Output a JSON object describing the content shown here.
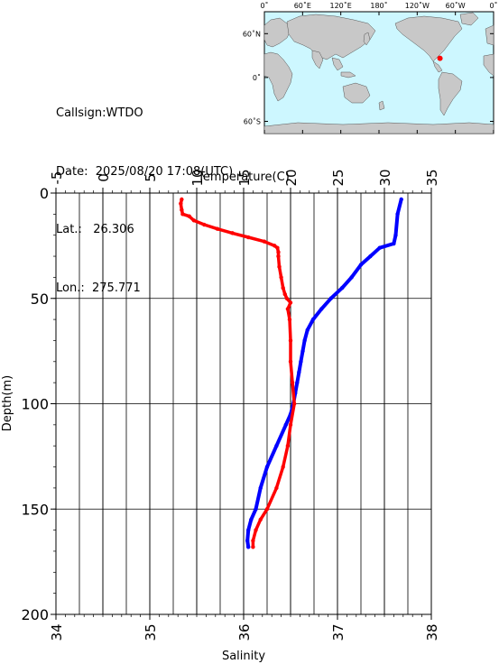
{
  "station": {
    "callsign_label": "Callsign:",
    "callsign": "WTDO",
    "date_label": "Date:",
    "date": "2025/08/20 17:08(UTC)",
    "lat_label": "Lat.:",
    "lat": "26.306",
    "lon_label": "Lon.:",
    "lon": "275.771"
  },
  "map": {
    "lon_ticks": [
      "0˚",
      "60˚E",
      "120˚E",
      "180˚",
      "120˚W",
      "60˚W",
      "0˚"
    ],
    "lat_ticks": [
      "60˚N",
      "0˚",
      "60˚S"
    ],
    "colors": {
      "ocean": "#cdf7ff",
      "land": "#c8c8c8",
      "marker": "#ff0000"
    },
    "marker": {
      "lat": 26.306,
      "lon": 275.771
    }
  },
  "chart_data": {
    "type": "line",
    "title": "",
    "top_axis_label": "Temperature(C)",
    "bottom_axis_label": "Salinity",
    "ylabel": "Depth(m)",
    "temperature_range": [
      -5,
      35
    ],
    "salinity_range": [
      34,
      38
    ],
    "depth_range": [
      0,
      200
    ],
    "temperature_ticks": [
      -5,
      0,
      5,
      10,
      15,
      20,
      25,
      30,
      35
    ],
    "salinity_ticks": [
      34,
      35,
      36,
      37,
      38
    ],
    "depth_ticks": [
      0,
      50,
      100,
      150,
      200
    ],
    "grid": true,
    "series": [
      {
        "color": "#0000ff",
        "axis": "temperature",
        "depth": [
          3,
          10,
          20,
          24,
          26,
          30,
          34,
          40,
          45,
          50,
          55,
          60,
          65,
          70,
          75,
          80,
          85,
          90,
          95,
          100,
          105,
          110,
          120,
          130,
          140,
          150,
          155,
          160,
          165,
          168
        ],
        "values": [
          31.8,
          31.4,
          31.2,
          31.0,
          29.5,
          28.5,
          27.5,
          26.5,
          25.5,
          24.3,
          23.3,
          22.4,
          21.8,
          21.5,
          21.3,
          21.1,
          20.9,
          20.7,
          20.5,
          20.3,
          20.0,
          19.5,
          18.5,
          17.5,
          16.8,
          16.3,
          15.8,
          15.5,
          15.4,
          15.5
        ]
      },
      {
        "color": "#ff0000",
        "axis": "salinity",
        "depth": [
          3,
          5,
          8,
          10,
          11,
          13,
          15,
          17,
          19,
          21,
          23,
          25,
          26,
          28,
          30,
          35,
          40,
          45,
          48,
          50,
          52,
          55,
          60,
          70,
          80,
          90,
          100,
          110,
          120,
          130,
          140,
          150,
          155,
          160,
          165,
          168
        ],
        "values": [
          35.34,
          35.33,
          35.34,
          35.35,
          35.42,
          35.47,
          35.58,
          35.72,
          35.88,
          36.05,
          36.22,
          36.33,
          36.36,
          36.37,
          36.37,
          36.38,
          36.4,
          36.42,
          36.44,
          36.46,
          36.5,
          36.47,
          36.49,
          36.5,
          36.5,
          36.52,
          36.54,
          36.5,
          36.47,
          36.42,
          36.35,
          36.25,
          36.18,
          36.13,
          36.1,
          36.1
        ]
      }
    ]
  }
}
